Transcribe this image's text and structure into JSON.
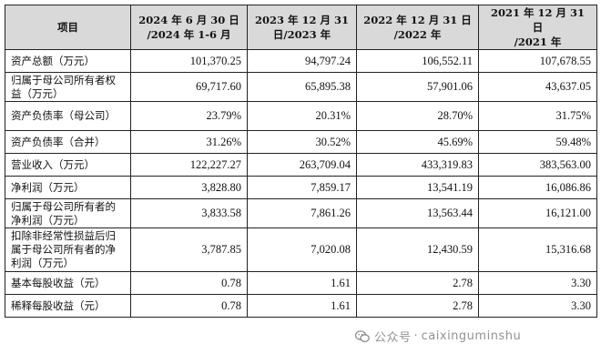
{
  "table": {
    "header": {
      "item": "项目",
      "col1_line1": "2024 年 6 月 30 日",
      "col1_line2": "/2024 年 1-6 月",
      "col2_line1": "2023 年 12 月 31",
      "col2_line2": "日/2023 年",
      "col3_line1": "2022 年 12 月 31 日",
      "col3_line2": "/2022 年",
      "col4_line1": "2021 年 12 月 31 日",
      "col4_line2": "/2021 年"
    },
    "rows": [
      {
        "label": "资产总额（万元）",
        "v1": "101,370.25",
        "v2": "94,797.24",
        "v3": "106,552.11",
        "v4": "107,678.55"
      },
      {
        "label": "归属于母公司所有者权益（万元）",
        "v1": "69,717.60",
        "v2": "65,895.38",
        "v3": "57,901.06",
        "v4": "43,637.05"
      },
      {
        "label": "资产负债率（母公司）",
        "v1": "23.79%",
        "v2": "20.31%",
        "v3": "28.70%",
        "v4": "31.75%"
      },
      {
        "label": "资产负债率（合并）",
        "v1": "31.26%",
        "v2": "30.52%",
        "v3": "45.69%",
        "v4": "59.48%"
      },
      {
        "label": "营业收入（万元）",
        "v1": "122,227.27",
        "v2": "263,709.04",
        "v3": "433,319.83",
        "v4": "383,563.00"
      },
      {
        "label": "净利润（万元）",
        "v1": "3,828.80",
        "v2": "7,859.17",
        "v3": "13,541.19",
        "v4": "16,086.86"
      },
      {
        "label": "归属于母公司所有者的净利润（万元）",
        "v1": "3,833.58",
        "v2": "7,861.26",
        "v3": "13,563.44",
        "v4": "16,121.00"
      },
      {
        "label": "扣除非经常性损益后归属于母公司所有者的净利润（万元）",
        "v1": "3,787.85",
        "v2": "7,020.08",
        "v3": "12,430.59",
        "v4": "15,316.68"
      },
      {
        "label": "基本每股收益（元）",
        "v1": "0.78",
        "v2": "1.61",
        "v3": "2.78",
        "v4": "3.30"
      },
      {
        "label": "稀释每股收益（元）",
        "v1": "0.78",
        "v2": "1.61",
        "v3": "2.78",
        "v4": "3.30"
      }
    ]
  },
  "watermark": {
    "source": "公众号",
    "separator": "·",
    "account": "caixinguminshu",
    "icon": "wechat-icon"
  }
}
